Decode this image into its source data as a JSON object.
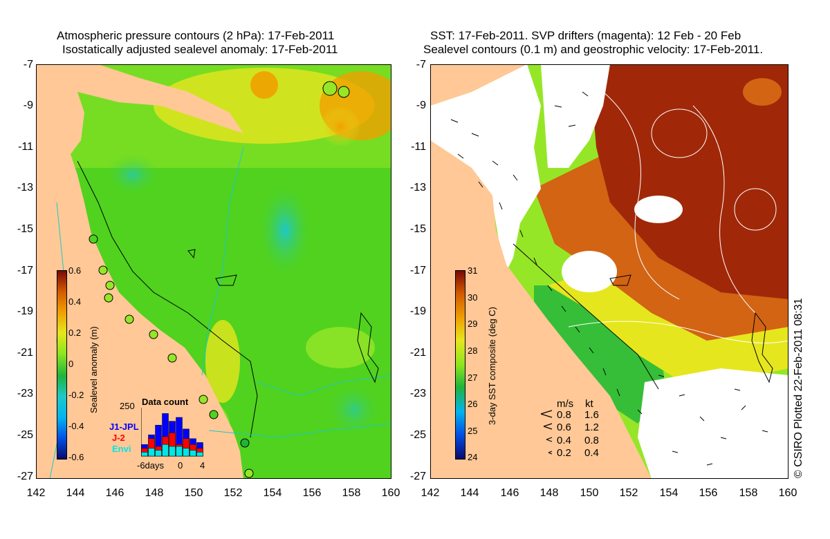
{
  "left_panel": {
    "title_line1": "Atmospheric pressure contours (2 hPa): 17-Feb-2011",
    "title_line2": "Isostatically adjusted sealevel anomaly: 17-Feb-2011",
    "colorbar": {
      "label": "Sealevel anomaly (m)",
      "ticks": [
        "0.6",
        "0.4",
        "0.2",
        "0",
        "-0.2",
        "-0.4",
        "-0.6"
      ],
      "colors": [
        "#0a0a6e",
        "#0050e6",
        "#00b4f0",
        "#1ec8c8",
        "#1eb43c",
        "#8ce61e",
        "#e6e61e",
        "#f0a000",
        "#d25a00",
        "#780a0a"
      ]
    },
    "inset": {
      "title": "Data count",
      "ymax_label": "250",
      "legend": [
        {
          "name": "J1-JPL",
          "color": "#0000ff"
        },
        {
          "name": "J-2",
          "color": "#ff0000"
        },
        {
          "name": "Envi",
          "color": "#00e6e6"
        }
      ],
      "x_labels": [
        "-6days",
        "0",
        "4"
      ],
      "bars": {
        "J1-JPL": [
          60,
          110,
          160,
          220,
          180,
          200,
          140,
          90,
          70
        ],
        "J-2": [
          40,
          90,
          50,
          100,
          120,
          60,
          90,
          60,
          40
        ],
        "Envi": [
          20,
          40,
          30,
          60,
          50,
          50,
          40,
          30,
          20
        ]
      }
    },
    "colors": {
      "land": "#ffc896",
      "sea_main": "#50d21e",
      "sea_light": "#96e628"
    }
  },
  "right_panel": {
    "title_line1": "SST: 17-Feb-2011. SVP drifters (magenta): 12 Feb - 20 Feb",
    "title_line2": "Sealevel contours (0.1 m) and geostrophic velocity: 17-Feb-2011.",
    "colorbar": {
      "label": "3-day SST composite (deg C)",
      "ticks": [
        "31",
        "30",
        "29",
        "28",
        "27",
        "26",
        "25",
        "24"
      ],
      "colors": [
        "#0a0a6e",
        "#0050e6",
        "#00b4f0",
        "#1eb43c",
        "#8ce61e",
        "#e6e61e",
        "#f0a000",
        "#d25a00",
        "#780a0a"
      ]
    },
    "velocity_key": {
      "header_ms": "m/s",
      "header_kt": "kt",
      "rows": [
        {
          "ms": "0.8",
          "kt": "1.6"
        },
        {
          "ms": "0.6",
          "kt": "1.2"
        },
        {
          "ms": "0.4",
          "kt": "0.8"
        },
        {
          "ms": "0.2",
          "kt": "0.4"
        }
      ]
    },
    "colors": {
      "land": "#ffc896",
      "sst_hot": "#a02808",
      "sst_warm": "#d26414",
      "cloud": "#ffffff"
    }
  },
  "axes": {
    "y_ticks": [
      "-7",
      "-9",
      "-11",
      "-13",
      "-15",
      "-17",
      "-19",
      "-21",
      "-23",
      "-25",
      "-27"
    ],
    "x_ticks": [
      "142",
      "144",
      "146",
      "148",
      "150",
      "152",
      "154",
      "156",
      "158",
      "160"
    ]
  },
  "credit": "© CSIRO Plotted 22-Feb-2011 08:31"
}
